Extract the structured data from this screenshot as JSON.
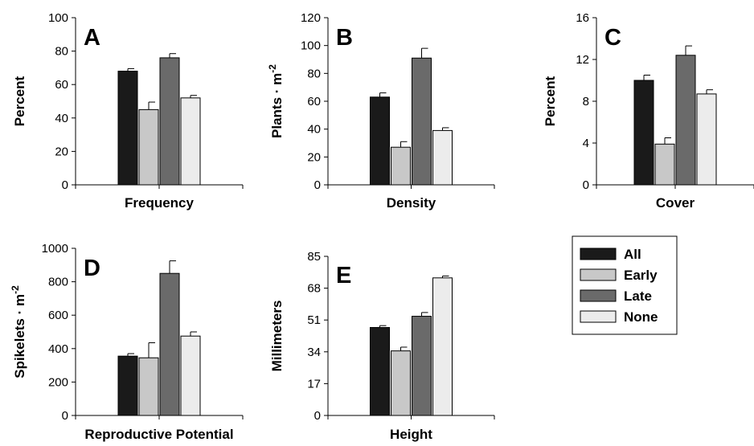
{
  "chart_data": [
    {
      "type": "bar",
      "panel": "A",
      "xlabel": "Frequency",
      "ylabel": "Percent",
      "ylim": [
        0,
        100
      ],
      "yticks": [
        "0",
        "20",
        "40",
        "60",
        "80",
        "100"
      ],
      "categories": [
        "All",
        "Early",
        "Late",
        "None"
      ],
      "values": [
        68,
        45,
        76,
        52
      ],
      "errors": [
        1.5,
        4.5,
        2.5,
        1.5
      ]
    },
    {
      "type": "bar",
      "panel": "B",
      "xlabel": "Density",
      "ylabel": "Plants · m",
      "ylabel_sup": "-2",
      "ylim": [
        0,
        120
      ],
      "yticks": [
        "0",
        "20",
        "40",
        "60",
        "80",
        "100",
        "120"
      ],
      "categories": [
        "All",
        "Early",
        "Late",
        "None"
      ],
      "values": [
        63,
        27,
        91,
        39
      ],
      "errors": [
        3,
        4,
        7,
        2
      ]
    },
    {
      "type": "bar",
      "panel": "C",
      "xlabel": "Cover",
      "ylabel": "Percent",
      "ylim": [
        0,
        16
      ],
      "yticks": [
        "0",
        "4",
        "8",
        "12",
        "16"
      ],
      "categories": [
        "All",
        "Early",
        "Late",
        "None"
      ],
      "values": [
        10.0,
        3.9,
        12.4,
        8.7
      ],
      "errors": [
        0.5,
        0.6,
        0.9,
        0.4
      ]
    },
    {
      "type": "bar",
      "panel": "D",
      "xlabel": "Reproductive Potential",
      "ylabel": "Spikelets · m",
      "ylabel_sup": "-2",
      "ylim": [
        0,
        1000
      ],
      "yticks": [
        "0",
        "200",
        "400",
        "600",
        "800",
        "1000"
      ],
      "categories": [
        "All",
        "Early",
        "Late",
        "None"
      ],
      "values": [
        355,
        345,
        850,
        475
      ],
      "errors": [
        15,
        90,
        75,
        25
      ]
    },
    {
      "type": "bar",
      "panel": "E",
      "xlabel": "Height",
      "ylabel": "Millimeters",
      "ylim": [
        0,
        85
      ],
      "yticks": [
        "0",
        "17",
        "34",
        "51",
        "68",
        "85"
      ],
      "categories": [
        "All",
        "Early",
        "Late",
        "None"
      ],
      "values": [
        47,
        34.5,
        53,
        73.5
      ],
      "errors": [
        1,
        2,
        2,
        1
      ]
    }
  ],
  "legend": {
    "placement": "right",
    "items": [
      {
        "label": "All",
        "color": "#1a1a1a"
      },
      {
        "label": "Early",
        "color": "#c8c8c8"
      },
      {
        "label": "Late",
        "color": "#6a6a6a"
      },
      {
        "label": "None",
        "color": "#ececec"
      }
    ]
  }
}
